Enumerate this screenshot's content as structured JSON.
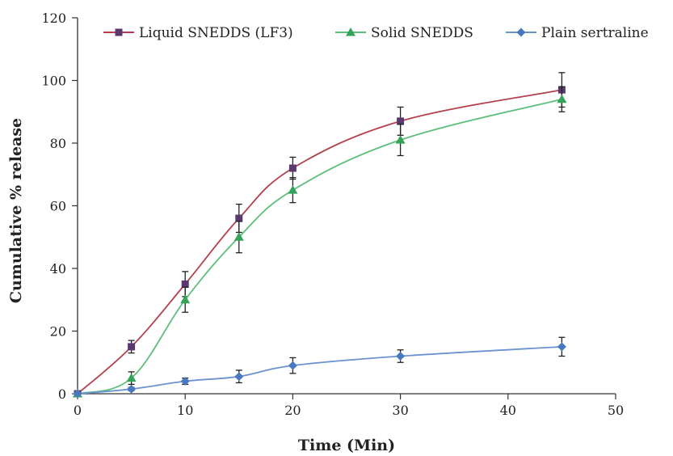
{
  "chart_data": {
    "type": "line",
    "title": "",
    "xlabel": "Time (Min)",
    "ylabel": "Cumulative % release",
    "xlim": [
      0,
      50
    ],
    "ylim": [
      0,
      120
    ],
    "xticks": [
      0,
      10,
      20,
      30,
      40,
      50
    ],
    "yticks": [
      0,
      20,
      40,
      60,
      80,
      100,
      120
    ],
    "grid": false,
    "legend_position": "top",
    "series": [
      {
        "name": "Liquid SNEDDS (LF3)",
        "color": "#b5404d",
        "marker_color": "#5a3a6e",
        "marker": "square",
        "x": [
          0,
          5,
          10,
          15,
          20,
          30,
          45
        ],
        "y": [
          0,
          15,
          35,
          56,
          72,
          87,
          97
        ],
        "error": [
          0,
          2,
          4,
          4.5,
          3.5,
          4.5,
          5.5
        ]
      },
      {
        "name": "Solid SNEDDS",
        "color": "#5cbf7a",
        "marker_color": "#35a35a",
        "marker": "triangle",
        "x": [
          0,
          5,
          10,
          15,
          20,
          30,
          45
        ],
        "y": [
          0,
          5,
          30,
          50,
          65,
          81,
          94
        ],
        "error": [
          0,
          2,
          4,
          5,
          4,
          5,
          4
        ]
      },
      {
        "name": "Plain sertraline",
        "color": "#6b93cf",
        "marker_color": "#4a78c0",
        "marker": "diamond",
        "x": [
          0,
          5,
          10,
          15,
          20,
          30,
          45
        ],
        "y": [
          0,
          1.5,
          4,
          5.5,
          9,
          12,
          15
        ],
        "error": [
          0,
          0.5,
          1,
          2,
          2.5,
          2,
          3
        ]
      }
    ]
  }
}
